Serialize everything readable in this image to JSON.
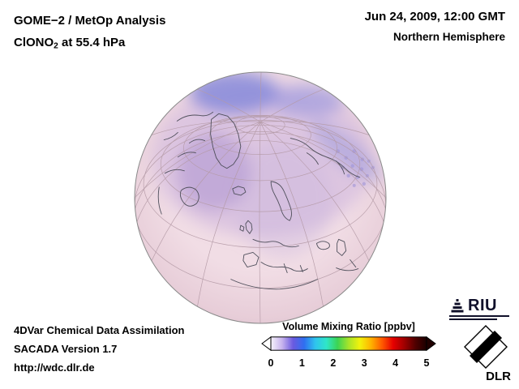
{
  "header": {
    "product": "GOME−2 / MetOp Analysis",
    "species_prefix": "ClONO",
    "species_sub": "2",
    "species_suffix": " at 55.4 hPa",
    "datetime": "Jun 24, 2009, 12:00 GMT",
    "region": "Northern Hemisphere"
  },
  "footer": {
    "line1": "4DVar Chemical Data Assimilation",
    "line2": "SACADA Version 1.7",
    "line3": "http://wdc.dlr.de"
  },
  "colorbar": {
    "title": "Volume Mixing Ratio [ppbv]",
    "ticks": [
      "0",
      "1",
      "2",
      "3",
      "4",
      "5"
    ]
  },
  "logos": {
    "riu_text": "RIU",
    "dlr_text": "DLR"
  },
  "colors": {
    "globe_base": "#f1dde5",
    "globe_mid": "#e7cdd8",
    "globe_edge": "#d8bcca",
    "wash_purple": "#bfa3da",
    "patch_blue": "#7b82d8",
    "patch_lightblue": "#9895dd",
    "patch_violet": "#a78fd2",
    "speckle": "#9b90d8",
    "graticule": "#b49aa6",
    "coastline": "#50505c",
    "arrow_dark": "#200000"
  },
  "chart_data": {
    "type": "heatmap",
    "title": "GOME−2 / MetOp Analysis — ClONO2 volume mixing ratio at 55.4 hPa",
    "datetime": "Jun 24, 2009, 12:00 GMT",
    "projection": "orthographic globe, Northern Hemisphere (view over the North Pole)",
    "colorbar": {
      "label": "Volume Mixing Ratio [ppbv]",
      "range": [
        0,
        5
      ],
      "ticks": [
        0,
        1,
        2,
        3,
        4,
        5
      ],
      "colors": [
        "#f6f2fb",
        "#c8b4ee",
        "#6a5ae0",
        "#2f6ff0",
        "#2fc4ee",
        "#2fe6c8",
        "#3cd453",
        "#a8e42a",
        "#f2f20c",
        "#ffb400",
        "#ff5a00",
        "#e60000",
        "#a00000",
        "#500000",
        "#1a0000"
      ],
      "left_arrow_color": "#ffffff",
      "right_arrow_color": "#200000"
    },
    "field_summary": "Field values read off the colorbar: pale pink background ≈ 0.1–0.3 ppbv at lower latitudes; violet wash ≈ 0.4–0.6 ppbv over mid/high latitudes; blue maxima ≈ 0.7–1.0 ppbv near the pole and in a band across northern Eurasia; small speckled enhancements over central Asia."
  }
}
